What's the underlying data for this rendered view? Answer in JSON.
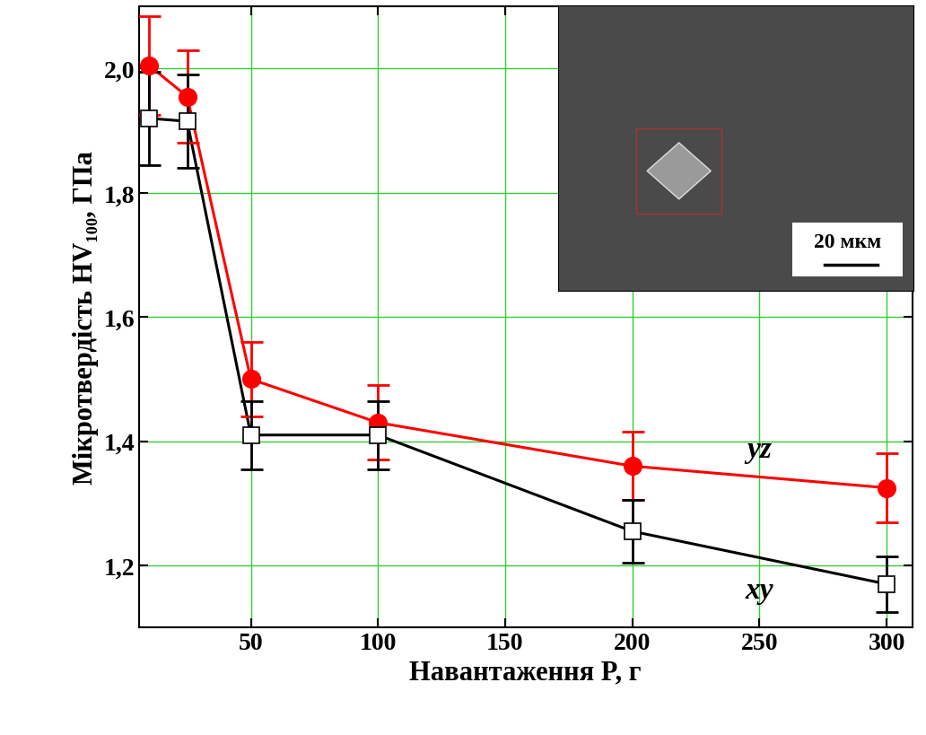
{
  "chart_data": {
    "type": "line",
    "x_label": "Навантаження P, г",
    "y_label": "Мікротвердість HV₁₀₀, ГПа",
    "xlim": [
      6,
      310
    ],
    "xticks": [
      50,
      100,
      150,
      200,
      250,
      300
    ],
    "ylim": [
      1.1,
      2.1
    ],
    "yticks": [
      {
        "value": 1.2,
        "label": "1,2"
      },
      {
        "value": 1.4,
        "label": "1,4"
      },
      {
        "value": 1.6,
        "label": "1,6"
      },
      {
        "value": 1.8,
        "label": "1,8"
      },
      {
        "value": 2.0,
        "label": "2,0"
      }
    ],
    "grid": true,
    "x": [
      10,
      25,
      50,
      100,
      200,
      300
    ],
    "series": [
      {
        "name": "yz",
        "color": "#ff0000",
        "marker": "circle",
        "line_style": "solid",
        "values": [
          2.005,
          1.955,
          1.5,
          1.43,
          1.36,
          1.325
        ],
        "errors": [
          0.08,
          0.075,
          0.06,
          0.06,
          0.055,
          0.055
        ]
      },
      {
        "name": "xy",
        "color": "#000000",
        "marker": "square",
        "line_style": "solid",
        "values": [
          1.92,
          1.915,
          1.41,
          1.41,
          1.255,
          1.17
        ],
        "errors": [
          0.075,
          0.075,
          0.055,
          0.055,
          0.05,
          0.045
        ]
      }
    ],
    "annotations": [
      {
        "text": "20 мкм"
      }
    ]
  }
}
